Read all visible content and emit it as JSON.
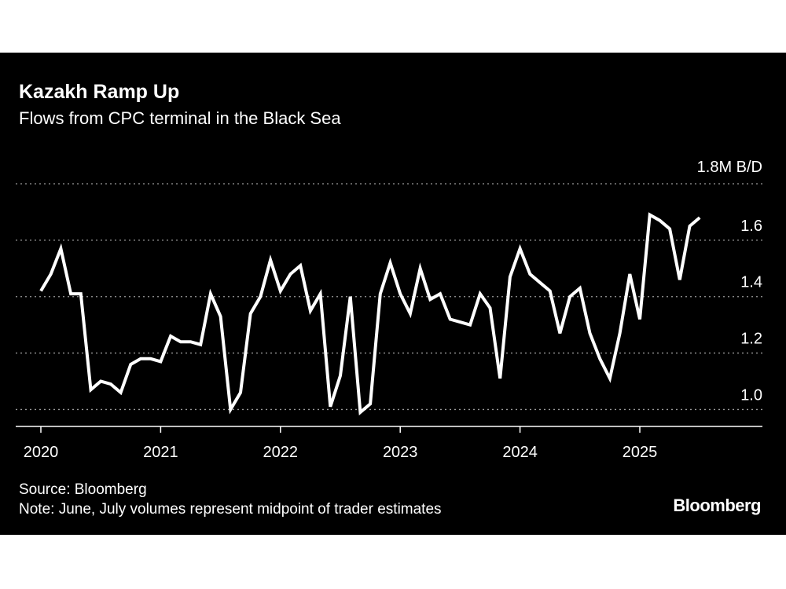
{
  "chart_data": {
    "type": "line",
    "title": "Kazakh Ramp Up",
    "subtitle": "Flows from CPC terminal in the Black Sea",
    "unit_label": "1.8M B/D",
    "y_ticks": [
      1.0,
      1.2,
      1.4,
      1.6
    ],
    "ylim": [
      0.94,
      1.8
    ],
    "x_ticks": [
      "2020",
      "2021",
      "2022",
      "2023",
      "2024",
      "2025"
    ],
    "x_range": [
      "2020-01",
      "2025-12"
    ],
    "grid": true,
    "line_color": "#ffffff",
    "background": "#000000",
    "series": [
      {
        "x": [
          "2020-01",
          "2020-02",
          "2020-03",
          "2020-04",
          "2020-05",
          "2020-06",
          "2020-07",
          "2020-08",
          "2020-09",
          "2020-10",
          "2020-11",
          "2020-12",
          "2021-01",
          "2021-02",
          "2021-03",
          "2021-04",
          "2021-05",
          "2021-06",
          "2021-07",
          "2021-08",
          "2021-09",
          "2021-10",
          "2021-11",
          "2021-12",
          "2022-01",
          "2022-02",
          "2022-03",
          "2022-04",
          "2022-05",
          "2022-06",
          "2022-07",
          "2022-08",
          "2022-09",
          "2022-10",
          "2022-11",
          "2022-12",
          "2023-01",
          "2023-02",
          "2023-03",
          "2023-04",
          "2023-05",
          "2023-06",
          "2023-07",
          "2023-08",
          "2023-09",
          "2023-10",
          "2023-11",
          "2023-12",
          "2024-01",
          "2024-02",
          "2024-03",
          "2024-04",
          "2024-05",
          "2024-06",
          "2024-07",
          "2024-08",
          "2024-09",
          "2024-10",
          "2024-11",
          "2024-12",
          "2025-01",
          "2025-02",
          "2025-03",
          "2025-04",
          "2025-05",
          "2025-06",
          "2025-07"
        ],
        "values": [
          1.42,
          1.48,
          1.57,
          1.41,
          1.41,
          1.07,
          1.1,
          1.09,
          1.06,
          1.16,
          1.18,
          1.18,
          1.17,
          1.26,
          1.24,
          1.24,
          1.23,
          1.41,
          1.33,
          1.0,
          1.06,
          1.34,
          1.4,
          1.53,
          1.42,
          1.48,
          1.51,
          1.35,
          1.41,
          1.01,
          1.12,
          1.4,
          0.99,
          1.02,
          1.41,
          1.52,
          1.41,
          1.34,
          1.5,
          1.39,
          1.41,
          1.32,
          1.31,
          1.3,
          1.41,
          1.36,
          1.11,
          1.47,
          1.57,
          1.48,
          1.45,
          1.42,
          1.27,
          1.4,
          1.43,
          1.27,
          1.18,
          1.11,
          1.27,
          1.48,
          1.32,
          1.69,
          1.67,
          1.64,
          1.46,
          1.65,
          1.68
        ]
      }
    ]
  },
  "footer": {
    "source": "Source: Bloomberg",
    "note": "Note: June, July volumes represent midpoint of trader estimates",
    "brand": "Bloomberg"
  }
}
